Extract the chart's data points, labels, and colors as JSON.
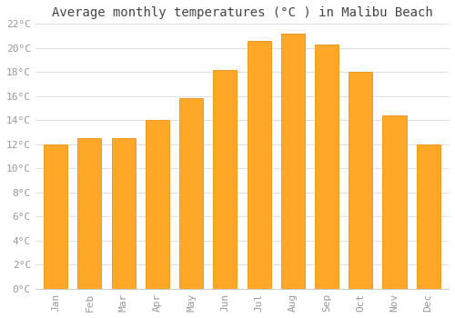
{
  "months": [
    "Jan",
    "Feb",
    "Mar",
    "Apr",
    "May",
    "Jun",
    "Jul",
    "Aug",
    "Sep",
    "Oct",
    "Nov",
    "Dec"
  ],
  "values": [
    12.0,
    12.5,
    12.5,
    14.0,
    15.8,
    18.2,
    20.6,
    21.2,
    20.3,
    18.0,
    14.4,
    12.0
  ],
  "bar_color": "#FFA726",
  "bar_edge_color": "#E8941A",
  "background_color": "#FFFFFF",
  "grid_color": "#E0E0E0",
  "title": "Average monthly temperatures (°C ) in Malibu Beach",
  "title_fontsize": 10,
  "title_font": "monospace",
  "ylim": [
    0,
    22
  ],
  "ytick_step": 2,
  "tick_label_color": "#999999",
  "tick_font": "monospace",
  "tick_fontsize": 8,
  "bar_width": 0.7
}
